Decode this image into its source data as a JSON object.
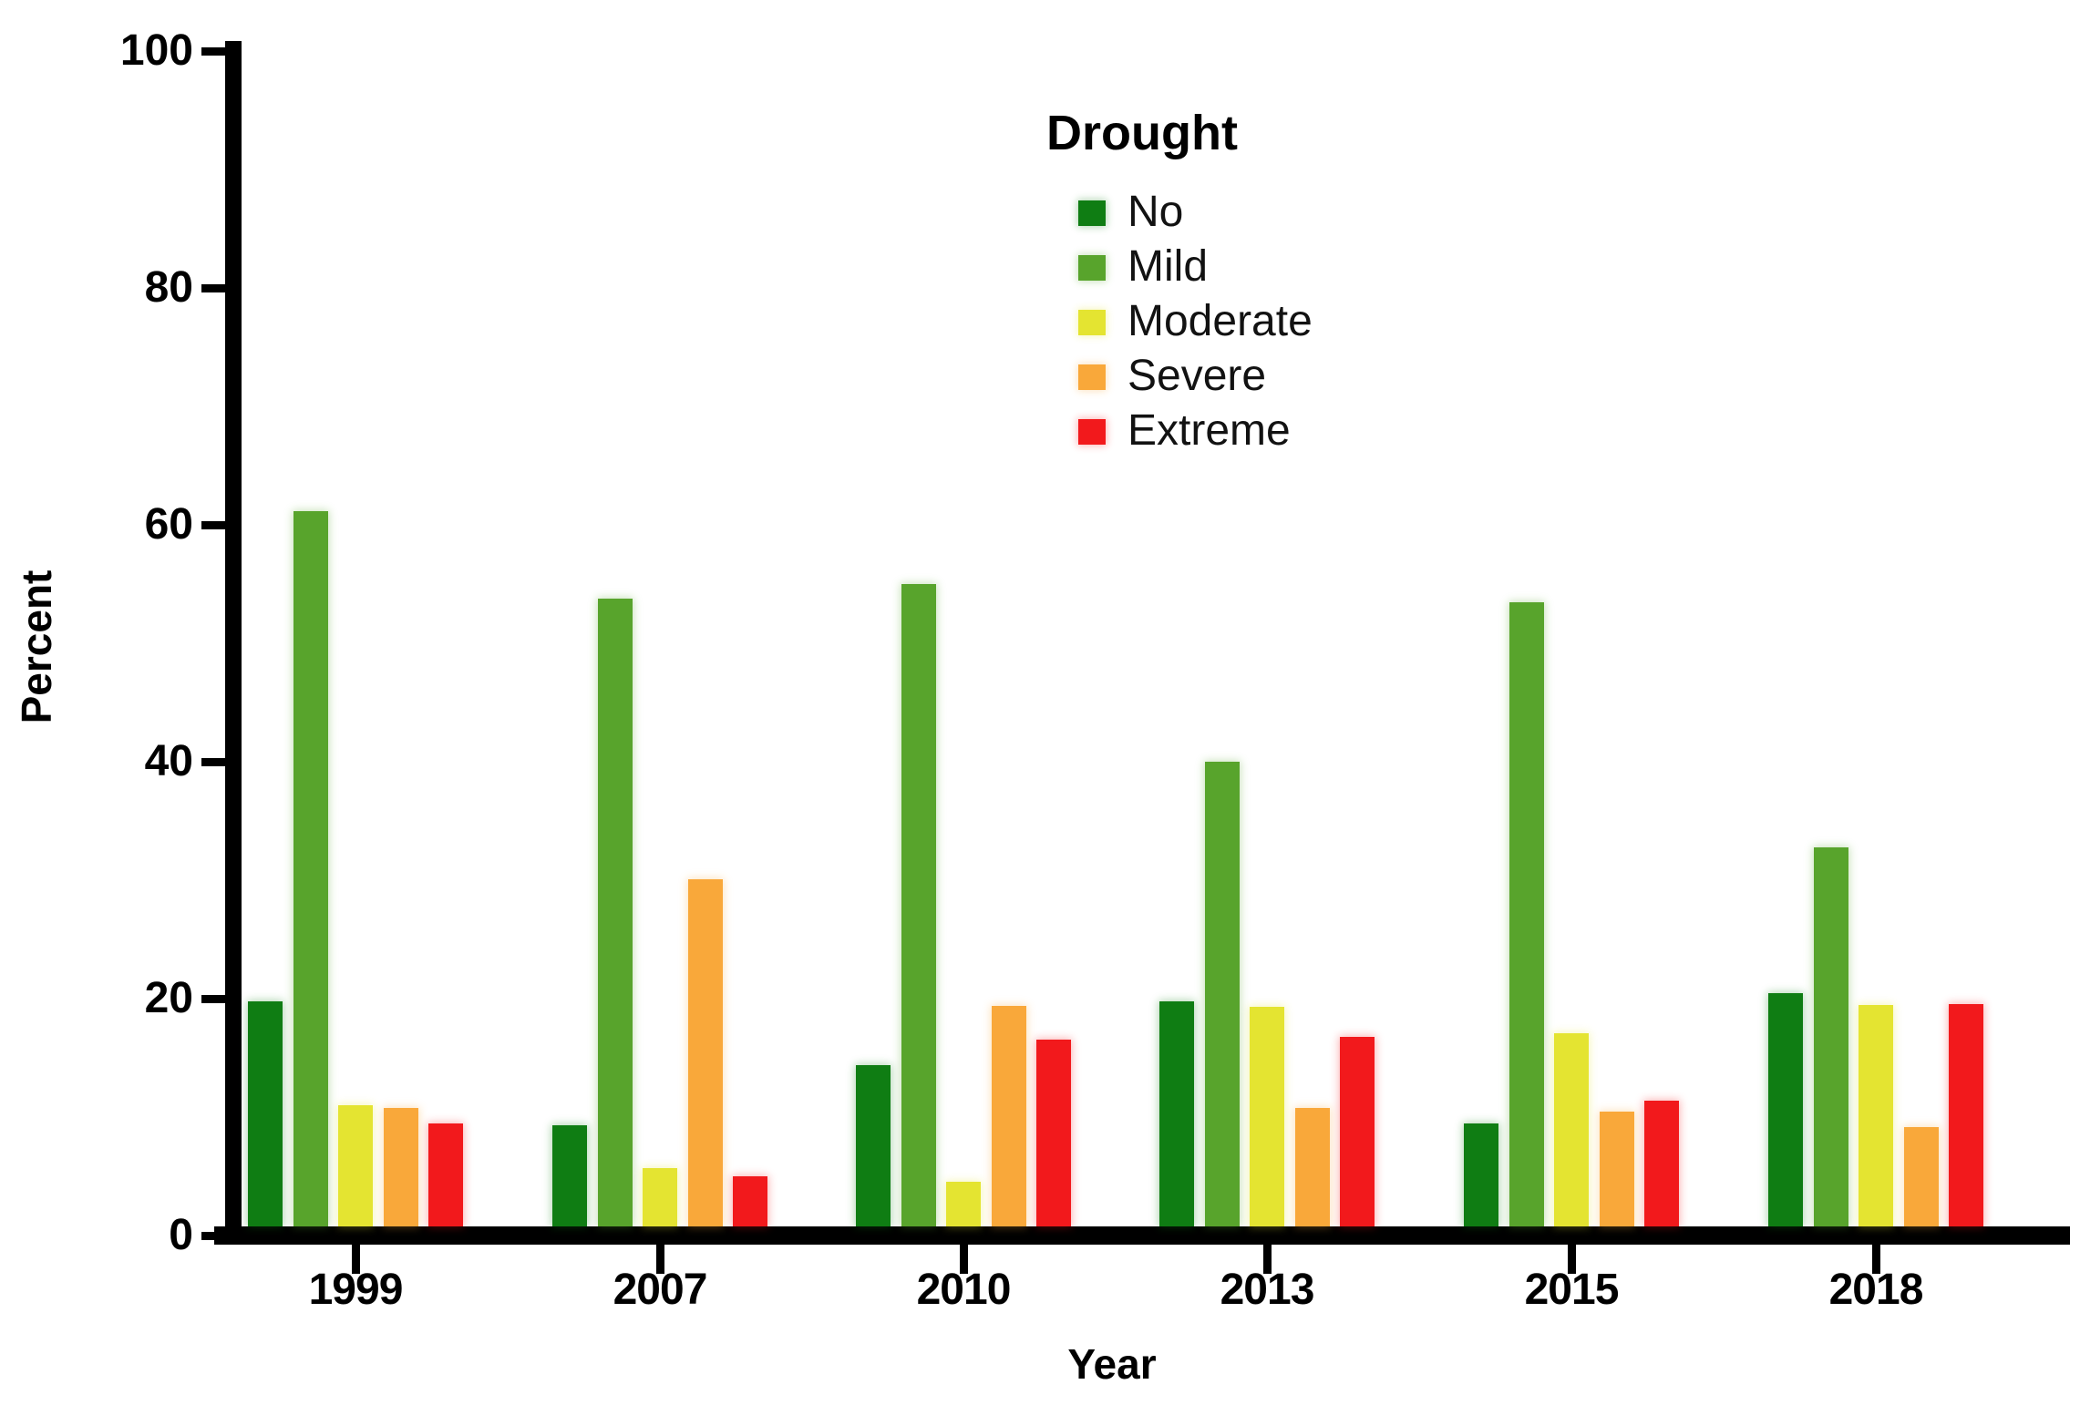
{
  "chart_data": {
    "type": "bar",
    "title": "",
    "legend_title": "Drought",
    "xlabel": "Year",
    "ylabel": "Percent",
    "ylim": [
      0,
      100
    ],
    "yticks": [
      0,
      20,
      40,
      60,
      80,
      100
    ],
    "categories": [
      "1999",
      "2007",
      "2010",
      "2013",
      "2015",
      "2018"
    ],
    "series": [
      {
        "name": "No",
        "color": "#0f7d13",
        "values": [
          19.0,
          8.5,
          13.6,
          19.0,
          8.7,
          19.7
        ]
      },
      {
        "name": "Mild",
        "color": "#58a42c",
        "values": [
          60.4,
          53.0,
          54.2,
          39.2,
          52.7,
          32.0
        ]
      },
      {
        "name": "Moderate",
        "color": "#e4e431",
        "values": [
          10.2,
          4.9,
          3.8,
          18.5,
          16.3,
          18.7
        ]
      },
      {
        "name": "Severe",
        "color": "#f9a83a",
        "values": [
          10.0,
          29.3,
          18.6,
          10.0,
          9.7,
          8.4
        ]
      },
      {
        "name": "Extreme",
        "color": "#f2191c",
        "values": [
          8.7,
          4.2,
          15.8,
          16.0,
          10.6,
          18.8
        ]
      }
    ],
    "legend_position": "top-center",
    "grid": false,
    "axis_color": "#000000",
    "background": "#ffffff"
  }
}
